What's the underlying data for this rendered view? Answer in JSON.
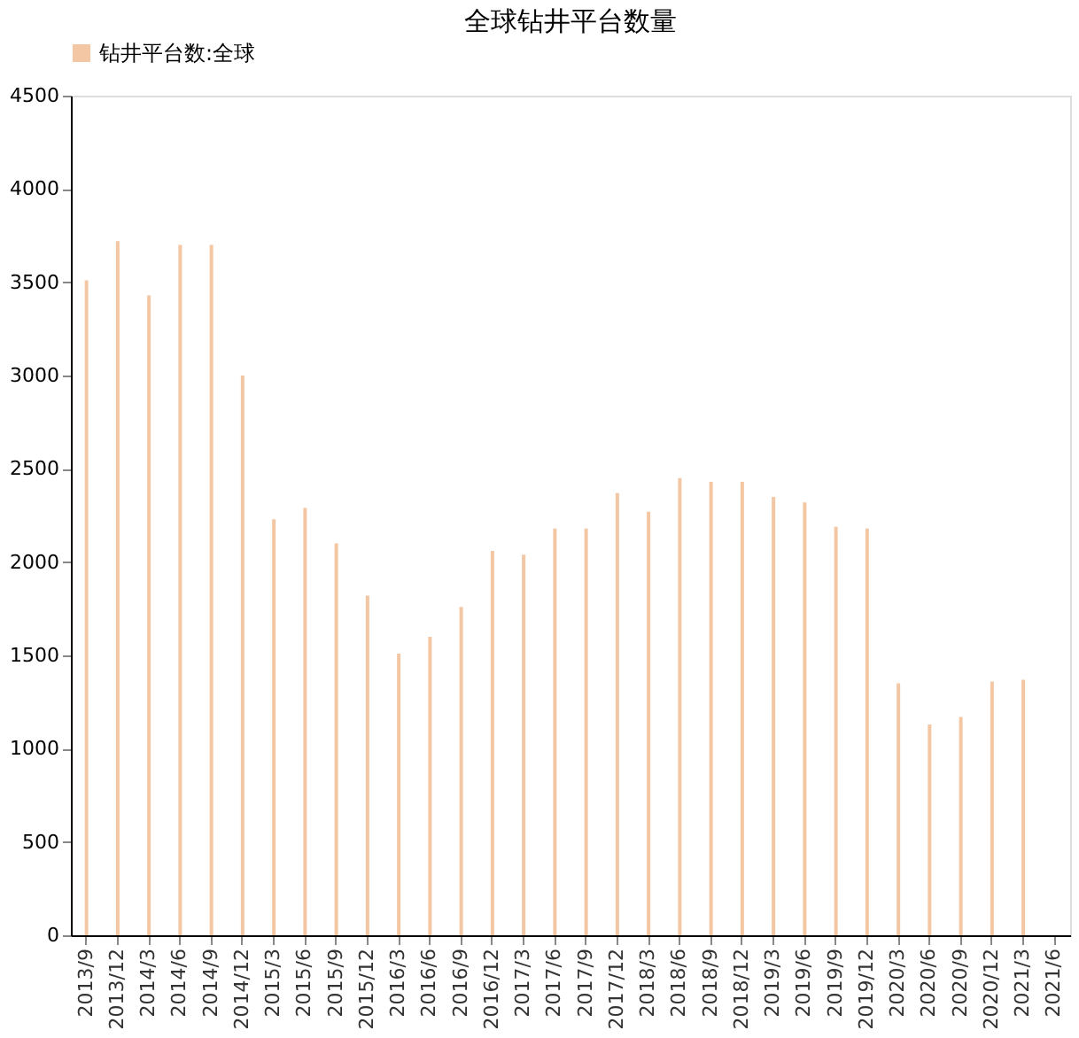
{
  "chart_data": {
    "type": "bar",
    "title": "全球钻井平台数量",
    "categories": [
      "2013/9",
      "2013/12",
      "2014/3",
      "2014/6",
      "2014/9",
      "2014/12",
      "2015/3",
      "2015/6",
      "2015/9",
      "2015/12",
      "2016/3",
      "2016/6",
      "2016/9",
      "2016/12",
      "2017/3",
      "2017/6",
      "2017/9",
      "2017/12",
      "2018/3",
      "2018/6",
      "2018/9",
      "2018/12",
      "2019/3",
      "2019/6",
      "2019/9",
      "2019/12",
      "2020/3",
      "2020/6",
      "2020/9",
      "2020/12",
      "2021/3",
      "2021/6"
    ],
    "series": [
      {
        "name": "钻井平台数:全球",
        "color": "#f4c7a4",
        "values": [
          3510,
          3720,
          3430,
          3700,
          3700,
          3000,
          2230,
          2290,
          2100,
          1820,
          1510,
          1600,
          1760,
          2060,
          2040,
          2180,
          2180,
          2370,
          2270,
          2450,
          2430,
          2430,
          2350,
          2320,
          2190,
          2180,
          1350,
          1130,
          1170,
          1360,
          1370,
          null
        ]
      }
    ],
    "ylim": [
      0,
      4500
    ],
    "yticks": [
      0,
      500,
      1000,
      1500,
      2000,
      2500,
      3000,
      3500,
      4000,
      4500
    ],
    "grid": false,
    "legend": "top"
  }
}
